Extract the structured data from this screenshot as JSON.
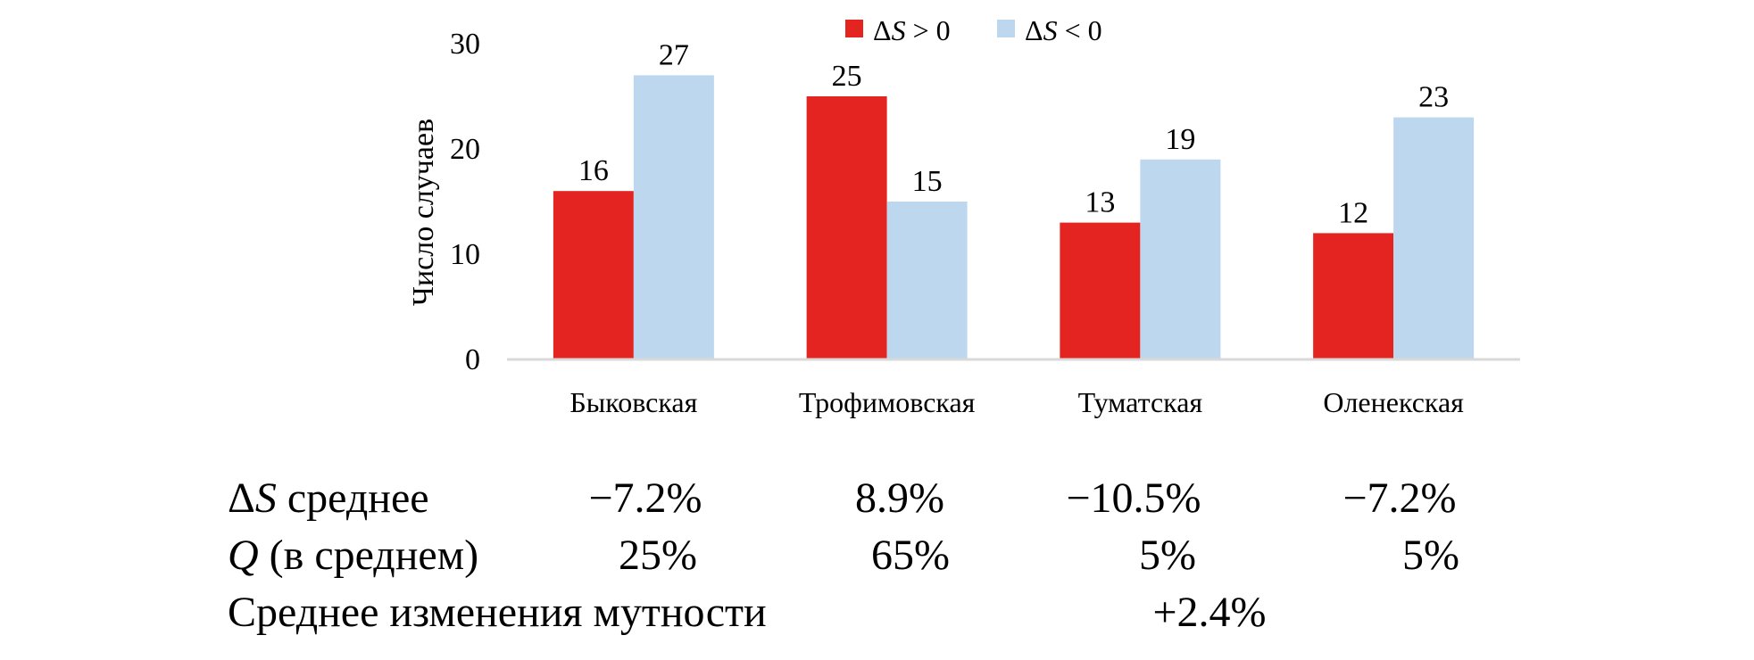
{
  "chart_data": {
    "type": "bar",
    "categories": [
      "Быковская",
      "Трофимовская",
      "Туматская",
      "Оленекская"
    ],
    "series": [
      {
        "name": "ΔS > 0",
        "color": "#e32421",
        "values": [
          16,
          25,
          13,
          12
        ]
      },
      {
        "name": "ΔS < 0",
        "color": "#bdd7ee",
        "values": [
          27,
          15,
          19,
          23
        ]
      }
    ],
    "ylabel": "Число случаев",
    "ylim": [
      0,
      30
    ],
    "yticks": [
      0,
      10,
      20,
      30
    ],
    "grid": false,
    "legend_position": "top",
    "data_labels": true
  },
  "legend": {
    "item1": {
      "sym": "Δ",
      "var": "S",
      "rest": " > 0"
    },
    "item2": {
      "sym": "Δ",
      "var": "S",
      "rest": " < 0"
    }
  },
  "stats": {
    "row1": {
      "sym": "Δ",
      "var": "S",
      "label": " среднее",
      "values": [
        "−7.2%",
        "8.9%",
        "−10.5%",
        "−7.2%"
      ]
    },
    "row2": {
      "var": "Q",
      "label": " (в среднем)",
      "values": [
        "25%",
        "65%",
        "5%",
        "5%"
      ]
    },
    "row3": {
      "label": "Среднее изменения мутности",
      "value": "+2.4%"
    }
  }
}
